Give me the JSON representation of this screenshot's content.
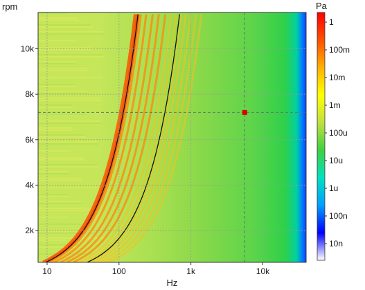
{
  "chart_data": {
    "type": "heatmap",
    "title": "",
    "xlabel": "Hz",
    "ylabel": "rpm",
    "x_scale": "log",
    "xlim": [
      7.5,
      40000
    ],
    "ylim": [
      600,
      11600
    ],
    "x_ticks": [
      {
        "value": 10,
        "label": "10"
      },
      {
        "value": 100,
        "label": "100"
      },
      {
        "value": 1000,
        "label": "1k"
      },
      {
        "value": 10000,
        "label": "10k"
      }
    ],
    "y_ticks": [
      {
        "value": 2000,
        "label": "2k"
      },
      {
        "value": 4000,
        "label": "4k"
      },
      {
        "value": 6000,
        "label": "6k"
      },
      {
        "value": 8000,
        "label": "8k"
      },
      {
        "value": 10000,
        "label": "10k"
      }
    ],
    "grid": true,
    "colorbar": {
      "title": "Pa",
      "scale": "log",
      "colors": [
        "#ffffff",
        "#0000ff",
        "#00a0ff",
        "#00e0c0",
        "#40d040",
        "#c0e040",
        "#ffff00",
        "#ffb000",
        "#ff5000",
        "#ff0000"
      ],
      "ticks": [
        {
          "value": 1e-08,
          "label": "10n"
        },
        {
          "value": 1e-07,
          "label": "100n"
        },
        {
          "value": 1e-06,
          "label": "1u"
        },
        {
          "value": 1e-05,
          "label": "10u"
        },
        {
          "value": 0.0001,
          "label": "100u"
        },
        {
          "value": 0.001,
          "label": "1m"
        },
        {
          "value": 0.01,
          "label": "10m"
        },
        {
          "value": 0.1,
          "label": "100m"
        },
        {
          "value": 1,
          "label": "1"
        }
      ]
    },
    "order_lines": [
      {
        "order": 1,
        "x_at_ylim_max": 185
      },
      {
        "order": 4,
        "x_at_ylim_max": 700
      }
    ],
    "cursor": {
      "x": 5600,
      "y": 7200
    },
    "colors": {
      "background_level": "#86d84a",
      "low_freq_level": "#c6e65a",
      "order_line": "#111111",
      "cursor_marker": "#dd0000",
      "cursor_line": "#5a7a6a",
      "grid": "#9a9a9a"
    }
  }
}
